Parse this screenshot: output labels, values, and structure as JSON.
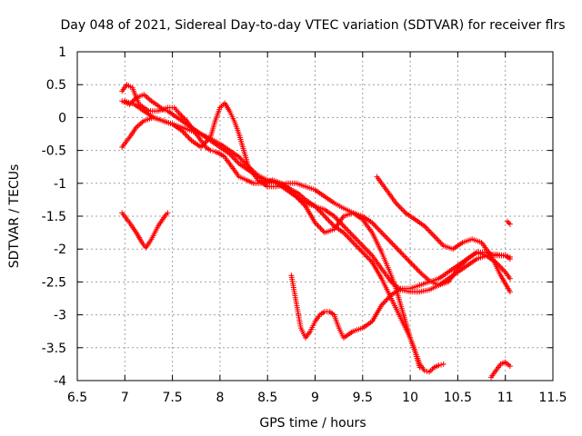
{
  "chart_data": {
    "type": "scatter",
    "title": "Day 048 of 2021, Sidereal Day-to-day VTEC variation (SDTVAR) for receiver flrs",
    "xlabel": "GPS time / hours",
    "ylabel": "SDTVAR / TECUs",
    "xlim": [
      6.5,
      11.5
    ],
    "ylim": [
      -4,
      1
    ],
    "xticks": [
      "6.5",
      "7",
      "7.5",
      "8",
      "8.5",
      "9",
      "9.5",
      "10",
      "10.5",
      "11",
      "11.5"
    ],
    "yticks": [
      "1",
      "0.5",
      "0",
      "-0.5",
      "-1",
      "-1.5",
      "-2",
      "-2.5",
      "-3",
      "-3.5",
      "-4"
    ],
    "grid": true,
    "legend": "none",
    "marker": "+",
    "color": "#ff0000",
    "series": [
      {
        "x": [
          6.97,
          7.02,
          7.08,
          7.15,
          7.25,
          7.35,
          7.45,
          7.52,
          7.58,
          7.65,
          7.7,
          7.75,
          7.8,
          7.85,
          7.9,
          7.95,
          8.0,
          8.05,
          8.1,
          8.15,
          8.2,
          8.28,
          8.35,
          8.45,
          8.55,
          8.65,
          8.75,
          8.82,
          8.9,
          9.0,
          9.1,
          9.2,
          9.3,
          9.4,
          9.5,
          9.6,
          9.7,
          9.8,
          9.9,
          10.0,
          10.05,
          10.1
        ],
        "y": [
          0.4,
          0.5,
          0.45,
          0.2,
          0.1,
          0.1,
          0.15,
          0.15,
          0.05,
          -0.05,
          -0.15,
          -0.25,
          -0.35,
          -0.45,
          -0.5,
          -0.52,
          -0.55,
          -0.6,
          -0.7,
          -0.8,
          -0.9,
          -0.95,
          -1.0,
          -1.0,
          -0.95,
          -1.0,
          -1.1,
          -1.15,
          -1.25,
          -1.35,
          -1.5,
          -1.65,
          -1.75,
          -1.9,
          -2.05,
          -2.2,
          -2.45,
          -2.75,
          -3.05,
          -3.35,
          -3.55,
          -3.8
        ]
      },
      {
        "x": [
          6.97,
          7.05,
          7.12,
          7.2,
          7.28,
          7.35,
          7.4,
          7.45,
          7.5,
          7.6,
          7.7,
          7.8,
          7.9,
          8.0,
          8.1,
          8.2,
          8.3,
          8.4,
          8.5,
          8.6,
          8.7,
          8.8,
          8.9,
          9.0,
          9.1,
          9.2,
          9.3,
          9.4,
          9.5,
          9.6,
          9.7,
          9.8,
          9.85,
          9.9,
          9.95,
          10.0,
          10.05,
          10.1,
          10.15,
          10.2,
          10.25,
          10.3,
          10.35
        ],
        "y": [
          0.25,
          0.2,
          0.3,
          0.35,
          0.25,
          0.18,
          0.12,
          0.1,
          0.05,
          -0.05,
          -0.15,
          -0.25,
          -0.35,
          -0.45,
          -0.55,
          -0.7,
          -0.8,
          -0.9,
          -0.98,
          -1.0,
          -1.05,
          -1.2,
          -1.35,
          -1.6,
          -1.75,
          -1.7,
          -1.5,
          -1.45,
          -1.55,
          -1.75,
          -2.05,
          -2.4,
          -2.6,
          -2.85,
          -3.1,
          -3.35,
          -3.55,
          -3.75,
          -3.85,
          -3.87,
          -3.8,
          -3.77,
          -3.75
        ]
      },
      {
        "x": [
          6.97,
          7.05,
          7.12,
          7.2,
          7.3,
          7.4,
          7.5,
          7.6,
          7.7,
          7.8,
          7.9,
          8.0,
          8.1,
          8.2,
          8.3,
          8.4,
          8.5,
          8.6,
          8.7,
          8.8,
          8.9,
          9.0,
          9.1,
          9.2,
          9.3,
          9.4,
          9.5,
          9.6,
          9.7,
          9.8,
          9.9,
          10.0,
          10.1,
          10.2,
          10.3,
          10.4,
          10.5,
          10.6,
          10.7,
          10.8,
          10.9,
          11.0,
          11.05
        ],
        "y": [
          -0.45,
          -0.3,
          -0.15,
          -0.05,
          0.0,
          -0.05,
          -0.1,
          -0.15,
          -0.2,
          -0.25,
          -0.32,
          -0.4,
          -0.5,
          -0.6,
          -0.75,
          -0.88,
          -0.95,
          -1.0,
          -1.1,
          -1.2,
          -1.3,
          -1.35,
          -1.4,
          -1.5,
          -1.65,
          -1.8,
          -1.95,
          -2.1,
          -2.3,
          -2.5,
          -2.62,
          -2.65,
          -2.65,
          -2.62,
          -2.55,
          -2.45,
          -2.35,
          -2.25,
          -2.15,
          -2.1,
          -2.08,
          -2.1,
          -2.12
        ]
      },
      {
        "x": [
          7.0,
          7.1,
          7.2,
          7.3,
          7.4,
          7.5,
          7.6,
          7.7,
          7.8,
          7.9,
          7.95,
          8.0,
          8.05,
          8.1,
          8.15,
          8.2,
          8.25,
          8.3,
          8.4,
          8.5,
          8.6,
          8.7,
          8.8,
          8.9,
          9.0,
          9.1,
          9.2,
          9.3,
          9.4,
          9.5,
          9.6,
          9.7,
          9.8,
          9.9,
          10.0,
          10.1,
          10.2,
          10.3,
          10.4,
          10.5,
          10.6,
          10.7,
          10.8,
          10.9,
          11.0,
          11.05
        ],
        "y": [
          0.25,
          0.2,
          0.1,
          0.0,
          -0.05,
          -0.1,
          -0.2,
          -0.35,
          -0.45,
          -0.3,
          -0.05,
          0.15,
          0.22,
          0.1,
          -0.05,
          -0.25,
          -0.5,
          -0.75,
          -0.95,
          -1.05,
          -1.05,
          -1.0,
          -1.0,
          -1.05,
          -1.1,
          -1.2,
          -1.3,
          -1.38,
          -1.45,
          -1.5,
          -1.6,
          -1.75,
          -1.9,
          -2.05,
          -2.2,
          -2.35,
          -2.48,
          -2.55,
          -2.5,
          -2.3,
          -2.15,
          -2.05,
          -2.1,
          -2.2,
          -2.35,
          -2.45
        ]
      },
      {
        "x": [
          9.65,
          9.75,
          9.85,
          9.95,
          10.05,
          10.15,
          10.25,
          10.35,
          10.45,
          10.55,
          10.65,
          10.75,
          10.85,
          10.95,
          11.05
        ],
        "y": [
          -0.9,
          -1.1,
          -1.3,
          -1.45,
          -1.55,
          -1.65,
          -1.8,
          -1.95,
          -2.0,
          -1.9,
          -1.85,
          -1.9,
          -2.1,
          -2.4,
          -2.65
        ]
      },
      {
        "x": [
          8.75,
          8.8,
          8.85,
          8.9,
          8.95,
          9.0,
          9.05,
          9.1,
          9.15,
          9.2,
          9.25,
          9.3,
          9.35,
          9.4,
          9.5,
          9.6,
          9.7,
          9.8,
          9.9,
          10.0,
          10.1,
          10.2,
          10.3,
          10.4,
          10.5,
          10.6,
          10.7,
          10.8,
          10.9,
          11.0,
          11.05
        ],
        "y": [
          -2.4,
          -2.8,
          -3.2,
          -3.35,
          -3.25,
          -3.1,
          -3.0,
          -2.95,
          -2.95,
          -3.0,
          -3.2,
          -3.35,
          -3.3,
          -3.25,
          -3.2,
          -3.1,
          -2.85,
          -2.7,
          -2.6,
          -2.6,
          -2.55,
          -2.5,
          -2.45,
          -2.35,
          -2.25,
          -2.15,
          -2.05,
          -2.05,
          -2.1,
          -2.1,
          -2.15
        ]
      },
      {
        "x": [
          6.97,
          7.05,
          7.12,
          7.18,
          7.22,
          7.28,
          7.35,
          7.42,
          7.45
        ],
        "y": [
          -1.45,
          -1.6,
          -1.75,
          -1.9,
          -1.98,
          -1.85,
          -1.65,
          -1.5,
          -1.45
        ]
      },
      {
        "x": [
          10.85,
          10.9,
          10.95,
          11.0,
          11.05
        ],
        "y": [
          -3.95,
          -3.85,
          -3.75,
          -3.72,
          -3.78
        ]
      },
      {
        "x": [
          11.02,
          11.05
        ],
        "y": [
          -1.58,
          -1.62
        ]
      }
    ]
  }
}
